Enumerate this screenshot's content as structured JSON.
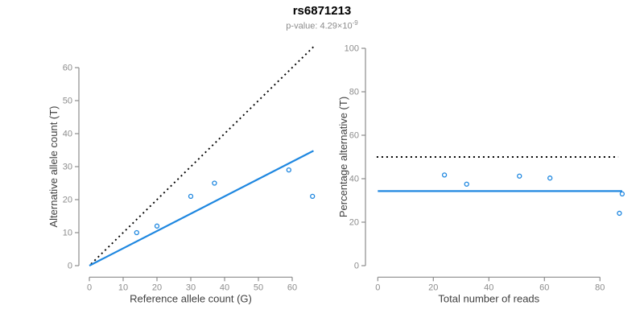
{
  "header": {
    "title": "rs6871213",
    "p_value_prefix": "p-value: 4.29×10",
    "p_value_exponent": "-9"
  },
  "colors": {
    "accent_blue": "#1E87E0",
    "line_black": "#000000",
    "axis_gray": "#8c8c8c",
    "tick_label_gray": "#8c8c8c",
    "axis_title_dark": "#404040"
  },
  "chart_data": [
    {
      "id": "allele-count-scatter",
      "type": "scatter",
      "title": "",
      "xlabel": "Reference allele count (G)",
      "ylabel": "Alternative allele count (T)",
      "xticks": [
        0,
        10,
        20,
        30,
        40,
        50,
        60
      ],
      "yticks": [
        0,
        10,
        20,
        30,
        40,
        50,
        60
      ],
      "xlim": [
        0,
        68
      ],
      "ylim": [
        0,
        68
      ],
      "grid": false,
      "legend_position": "none",
      "points": [
        [
          14,
          10
        ],
        [
          20,
          12
        ],
        [
          30,
          21
        ],
        [
          37,
          25
        ],
        [
          59,
          29
        ],
        [
          66,
          21
        ]
      ],
      "lines": [
        {
          "name": "identity-line",
          "style": "dotted",
          "color": "#000000",
          "x1": 0.5,
          "y1": 0.5,
          "x2": 66.8,
          "y2": 66.8
        },
        {
          "name": "fit-line",
          "style": "solid",
          "color": "#1E87E0",
          "x1": 0,
          "y1": 0,
          "x2": 66.3,
          "y2": 34.8
        }
      ]
    },
    {
      "id": "percentage-alternative-scatter",
      "type": "scatter",
      "title": "",
      "xlabel": "Total number of reads",
      "ylabel": "Percentage alternative (T)",
      "xticks": [
        0,
        20,
        40,
        60,
        80
      ],
      "yticks": [
        0,
        20,
        40,
        60,
        80,
        100
      ],
      "xlim": [
        0,
        90
      ],
      "ylim": [
        0,
        100
      ],
      "grid": false,
      "legend_position": "none",
      "points": [
        [
          24,
          41.7
        ],
        [
          32,
          37.5
        ],
        [
          51,
          41.2
        ],
        [
          62,
          40.3
        ],
        [
          88,
          33.0
        ],
        [
          87,
          24.1
        ]
      ],
      "lines": [
        {
          "name": "fifty-percent-line",
          "style": "dotted",
          "color": "#000000",
          "x1": -0.4,
          "y1": 50,
          "x2": 86.6,
          "y2": 50
        },
        {
          "name": "mean-percentage-line",
          "style": "solid",
          "color": "#1E87E0",
          "x1": 0,
          "y1": 34.3,
          "x2": 88,
          "y2": 34.3
        }
      ]
    }
  ]
}
